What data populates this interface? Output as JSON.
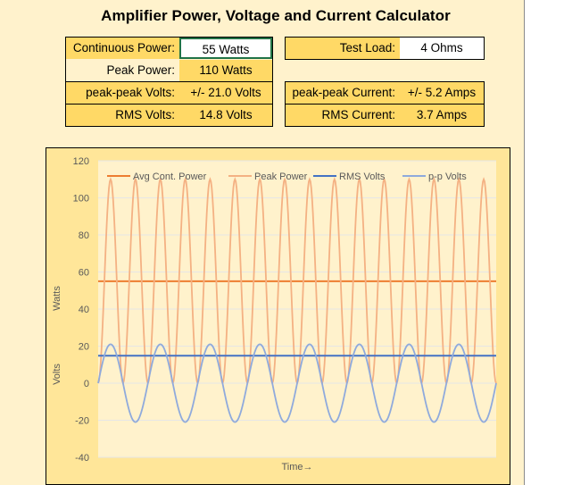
{
  "title": "Amplifier Power, Voltage and Current Calculator",
  "fields": {
    "continuous_power": {
      "label": "Continuous Power:",
      "value": "55  Watts"
    },
    "test_load": {
      "label": "Test Load:",
      "value": "4  Ohms"
    },
    "peak_power": {
      "label": "Peak Power:",
      "value": "110  Watts"
    },
    "pp_volts": {
      "label": "peak-peak Volts:",
      "value": "+/- 21.0  Volts"
    },
    "pp_current": {
      "label": "peak-peak Current:",
      "value": "+/- 5.2  Amps"
    },
    "rms_volts": {
      "label": "RMS Volts:",
      "value": "14.8  Volts"
    },
    "rms_current": {
      "label": "RMS Current:",
      "value": "3.7  Amps"
    }
  },
  "colors": {
    "avg_power": "#ed7d31",
    "peak_power": "#f4b183",
    "rms_volts": "#4472c4",
    "pp_volts": "#8faadc",
    "watts_label": "#ed7d31",
    "volts_label": "#2e75b6"
  },
  "chart_data": {
    "type": "line",
    "ylim": [
      -40,
      120
    ],
    "yticks": [
      "120",
      "100",
      "80",
      "60",
      "40",
      "20",
      "0",
      "-20",
      "-40"
    ],
    "ylabel_watts": "Watts",
    "ylabel_volts": "Volts",
    "xlabel": "Time→",
    "grid": true,
    "legend_position": "top",
    "cycles": 8,
    "series": [
      {
        "name": "Avg Cont. Power",
        "kind": "constant",
        "value": 55
      },
      {
        "name": "Peak Power",
        "kind": "sin_squared",
        "peak": 110
      },
      {
        "name": "RMS Volts",
        "kind": "constant",
        "value": 14.8
      },
      {
        "name": "p-p Volts",
        "kind": "sine",
        "amplitude": 21.0
      }
    ]
  }
}
